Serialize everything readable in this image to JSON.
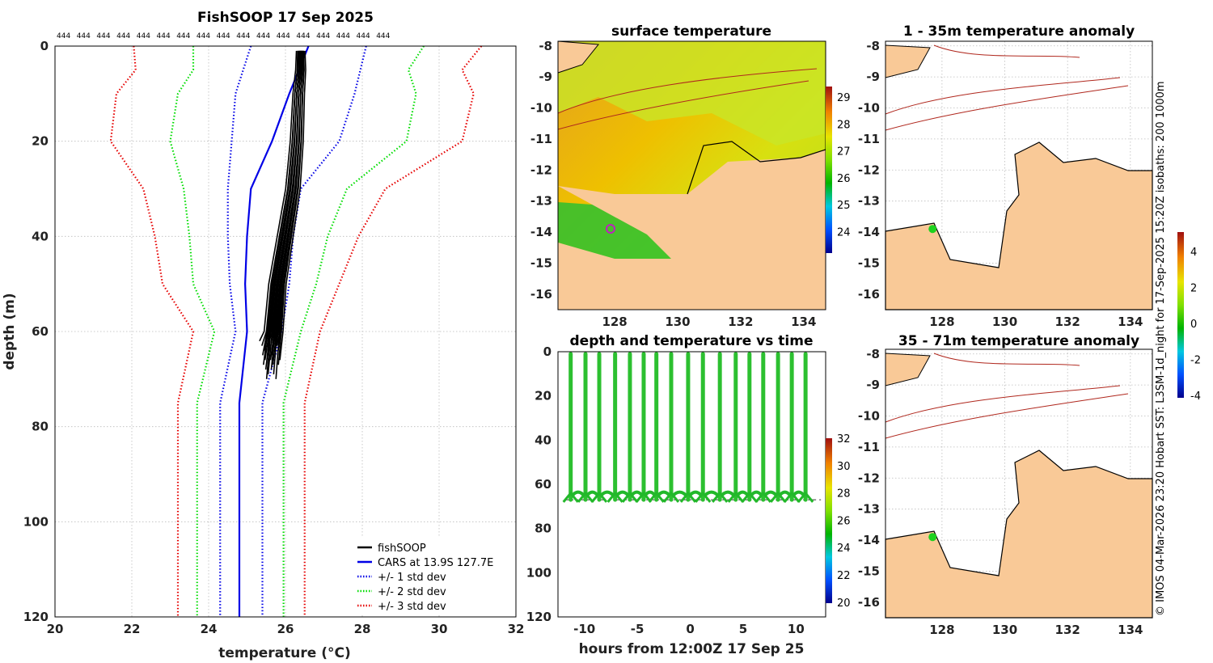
{
  "chart_data": [
    {
      "type": "line",
      "title": "FishSOOP 17 Sep 2025",
      "xlabel": "temperature",
      "xlabel_unit": "(°C)",
      "ylabel": "depth (m)",
      "xlim": [
        20,
        32
      ],
      "ylim": [
        0,
        120
      ],
      "y_reversed": true,
      "xticks": [
        20,
        22,
        24,
        26,
        28,
        30,
        32
      ],
      "yticks": [
        0,
        20,
        40,
        60,
        80,
        100,
        120
      ],
      "count_label": "444",
      "count_label_repeats": 17,
      "legend_position": "bottom-right",
      "cars_location": "13.9S 127.7E",
      "series": [
        {
          "name": "fishSOOP",
          "style": "solid",
          "color": "#000000",
          "depth": [
            1,
            5,
            10,
            20,
            30,
            40,
            50,
            60,
            70
          ],
          "temp": [
            26.4,
            26.4,
            26.35,
            26.3,
            26.2,
            26.0,
            25.8,
            25.7,
            25.6
          ]
        },
        {
          "name": "CARS at 13.9S 127.7E",
          "style": "solid",
          "color": "#0000e6",
          "depth": [
            0,
            10,
            20,
            30,
            40,
            50,
            60,
            75,
            120
          ],
          "temp": [
            26.6,
            26.1,
            25.65,
            25.1,
            25.0,
            24.95,
            25.0,
            24.8,
            24.8
          ]
        },
        {
          "name": "+/- 1 std dev",
          "style": "dotted",
          "color": "#0000e6",
          "depth": [
            0,
            10,
            20,
            30,
            40,
            50,
            60,
            75,
            120
          ],
          "temp_low": [
            25.1,
            24.7,
            24.6,
            24.5,
            24.5,
            24.55,
            24.7,
            24.3,
            24.3
          ],
          "temp_high": [
            28.1,
            27.8,
            27.4,
            26.4,
            26.2,
            26.1,
            25.9,
            25.4,
            25.4
          ]
        },
        {
          "name": "+/- 2 std dev",
          "style": "dotted",
          "color": "#00dd00",
          "depth": [
            0,
            5,
            10,
            20,
            30,
            40,
            50,
            60,
            75,
            120
          ],
          "temp_low": [
            23.6,
            23.6,
            23.2,
            23.0,
            23.35,
            23.5,
            23.6,
            24.15,
            23.7,
            23.7
          ],
          "temp_high": [
            29.6,
            29.2,
            29.4,
            29.15,
            27.6,
            27.1,
            26.8,
            26.4,
            25.95,
            25.95
          ]
        },
        {
          "name": "+/- 3 std dev",
          "style": "dotted",
          "color": "#e60000",
          "depth": [
            0,
            5,
            10,
            20,
            30,
            40,
            50,
            60,
            75,
            120
          ],
          "temp_low": [
            22.05,
            22.1,
            21.6,
            21.45,
            22.3,
            22.6,
            22.8,
            23.6,
            23.2,
            23.2
          ],
          "temp_high": [
            31.1,
            30.6,
            30.9,
            30.6,
            28.6,
            27.9,
            27.4,
            26.9,
            26.5,
            26.5
          ]
        }
      ]
    },
    {
      "type": "heatmap",
      "title": "surface temperature",
      "xticks": [
        128,
        130,
        132,
        134
      ],
      "yticks": [
        -8,
        -9,
        -10,
        -11,
        -12,
        -13,
        -14,
        -15,
        -16
      ],
      "colorbar_ticks": [
        29,
        28,
        27,
        26,
        25,
        24
      ],
      "marker": {
        "lon": 127.7,
        "lat": -13.9
      }
    },
    {
      "type": "scatter",
      "title": "depth and temperature vs time",
      "xlabel": "hours from 12:00Z 17 Sep 25",
      "xticks": [
        -10,
        -5,
        0,
        5,
        10
      ],
      "yticks": [
        0,
        20,
        40,
        60,
        80,
        100,
        120
      ],
      "xlim": [
        -12.5,
        12.8
      ],
      "ylim": [
        0,
        120
      ],
      "colorbar_ticks": [
        32,
        30,
        28,
        26,
        24,
        22,
        20
      ],
      "cast_hours": [
        -11.3,
        -9.9,
        -8.6,
        -7.1,
        -5.7,
        -4.4,
        -3.2,
        -1.8,
        -0.2,
        1.2,
        2.8,
        4.3,
        5.6,
        6.9,
        8.3,
        9.6,
        10.9
      ],
      "cast_depth_m": 66
    },
    {
      "type": "heatmap",
      "title": "1 - 35m temperature anomaly",
      "xticks": [
        128,
        130,
        132,
        134
      ],
      "yticks": [
        -8,
        -9,
        -10,
        -11,
        -12,
        -13,
        -14,
        -15,
        -16
      ],
      "marker": {
        "lon": 127.7,
        "lat": -13.9
      }
    },
    {
      "type": "heatmap",
      "title": "35 - 71m temperature anomaly",
      "xticks": [
        128,
        130,
        132,
        134
      ],
      "yticks": [
        -8,
        -9,
        -10,
        -11,
        -12,
        -13,
        -14,
        -15,
        -16
      ],
      "marker": {
        "lon": 127.7,
        "lat": -13.9
      }
    }
  ],
  "anomaly_colorbar_ticks": [
    4,
    2,
    0,
    -2,
    -4
  ],
  "credit_text": "© IMOS 04-Mar-2026 23:20 Hobart SST: L3SM-1d_night for 17-Sep-2025 15:20Z isobaths: 200  1000m",
  "colors": {
    "land": "#f9c997",
    "bathy": "#b0281e",
    "cars": "#0000e6",
    "std1": "#0000e6",
    "std2": "#00dd00",
    "std3": "#e60000",
    "marker_green": "#1ed21e"
  }
}
